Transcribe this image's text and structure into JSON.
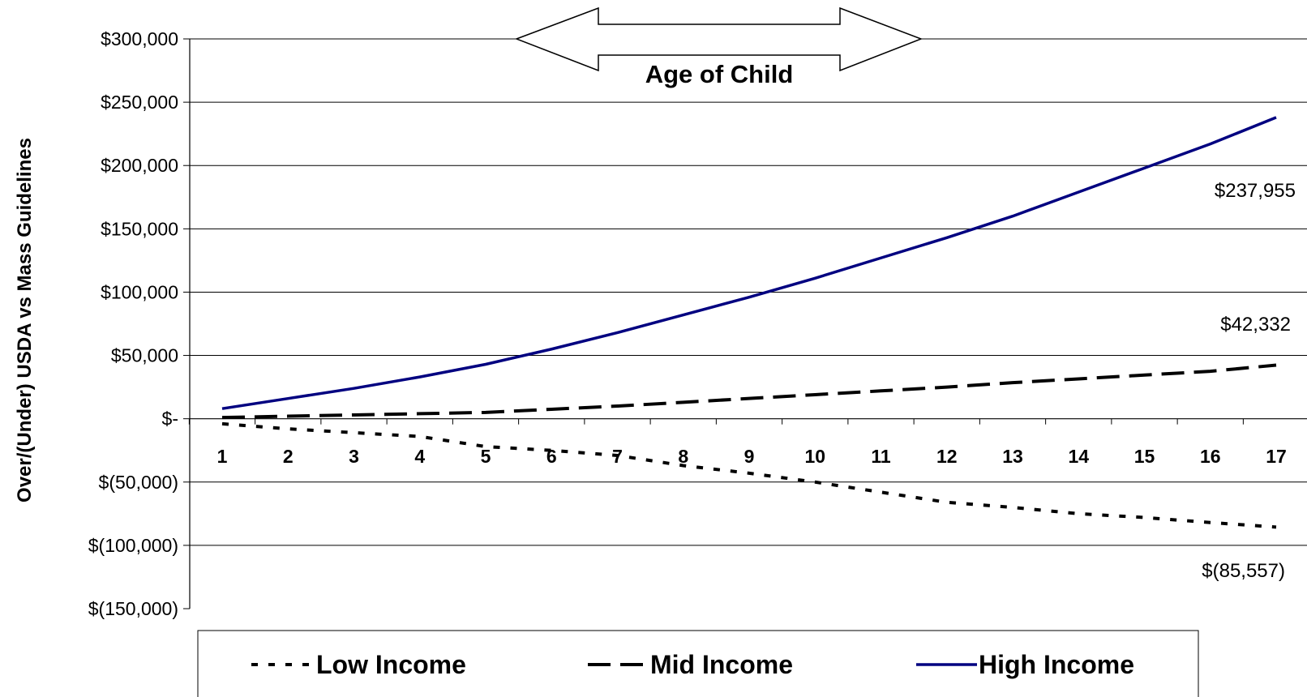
{
  "chart_data": {
    "type": "line",
    "ylabel": "Over/(Under) USDA vs Mass Guidelines",
    "annotation": "Age of Child",
    "ylim": [
      -150000,
      300000
    ],
    "y_ticks": [
      300000,
      250000,
      200000,
      150000,
      100000,
      50000,
      0,
      -50000,
      -100000,
      -150000
    ],
    "y_tick_labels": [
      "$300,000",
      "$250,000",
      "$200,000",
      "$150,000",
      "$100,000",
      "$50,000",
      "$-",
      "$(50,000)",
      "$(100,000)",
      "$(150,000)"
    ],
    "x": [
      1,
      2,
      3,
      4,
      5,
      6,
      7,
      8,
      9,
      10,
      11,
      12,
      13,
      14,
      15,
      16,
      17
    ],
    "categories": [
      "1",
      "2",
      "3",
      "4",
      "5",
      "6",
      "7",
      "8",
      "9",
      "10",
      "11",
      "12",
      "13",
      "14",
      "15",
      "16",
      "17"
    ],
    "grid": "horizontal",
    "legend_position": "bottom",
    "series": [
      {
        "name": "Low Income",
        "style": "dotted",
        "color": "#000000",
        "values": [
          -4000,
          -8000,
          -11000,
          -14000,
          -22000,
          -25000,
          -29000,
          -37000,
          -43000,
          -50000,
          -58000,
          -66000,
          -70000,
          -75000,
          -78000,
          -82000,
          -85557
        ],
        "end_label": "$(85,557)"
      },
      {
        "name": "Mid Income",
        "style": "dashed",
        "color": "#000000",
        "values": [
          1000,
          2000,
          3000,
          4000,
          5000,
          7500,
          10000,
          13000,
          16000,
          19000,
          22000,
          25000,
          28500,
          31500,
          34500,
          37500,
          42332
        ],
        "end_label": "$42,332"
      },
      {
        "name": "High Income",
        "style": "solid",
        "color": "#000080",
        "values": [
          8000,
          16000,
          24000,
          33000,
          43000,
          55000,
          68000,
          82000,
          96000,
          111000,
          127000,
          143000,
          160000,
          179000,
          198000,
          217000,
          237955
        ],
        "end_label": "$237,955"
      }
    ]
  }
}
